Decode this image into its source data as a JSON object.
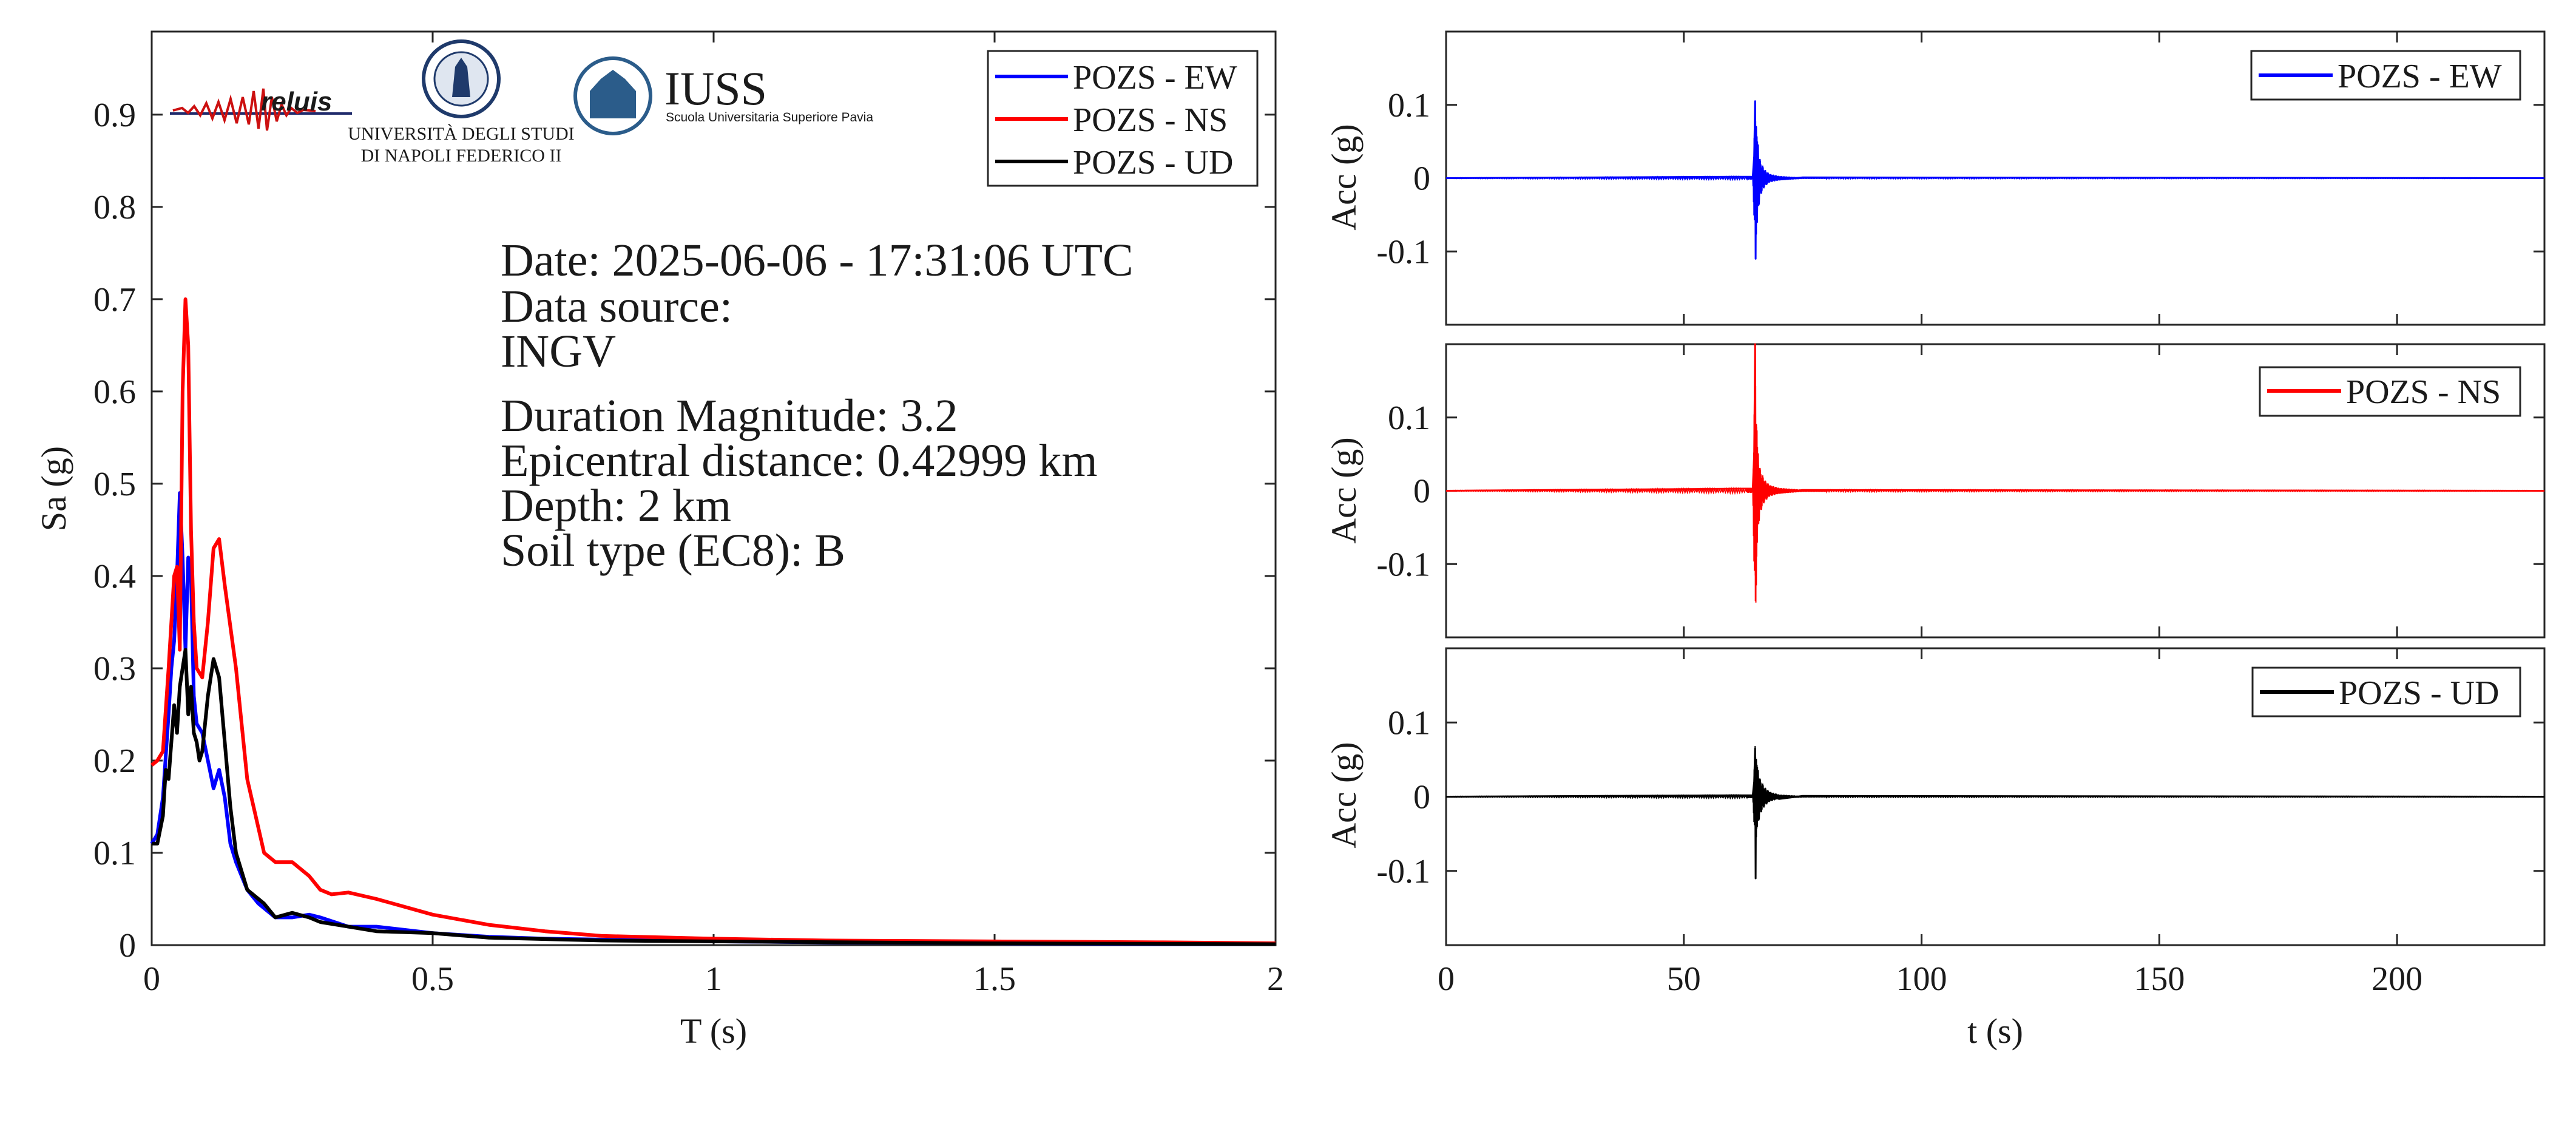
{
  "logos": {
    "reluis": "reluis",
    "unina_line1": "UNIVERSITÀ DEGLI STUDI",
    "unina_line2": "DI NAPOLI FEDERICO II",
    "iuss": "IUSS",
    "iuss_sub": "Scuola Universitaria Superiore Pavia"
  },
  "info": {
    "date": "Date: 2025-06-06 - 17:31:06 UTC",
    "source_label": "Data source:",
    "source": "INGV",
    "magnitude": "Duration Magnitude: 3.2",
    "distance": "Epicentral distance: 0.42999 km",
    "depth": "Depth: 2 km",
    "soil": "Soil type (EC8): B"
  },
  "colors": {
    "EW": "#0000ff",
    "NS": "#ff0000",
    "UD": "#000000"
  },
  "chart_data": [
    {
      "type": "line",
      "xlabel": "T (s)",
      "ylabel": "Sa (g)",
      "xlim": [
        0,
        2
      ],
      "ylim": [
        0,
        0.99
      ],
      "xticks": [
        0,
        0.5,
        1,
        1.5,
        2
      ],
      "xtick_labels": [
        "0",
        "0.5",
        "1",
        "1.5",
        "2"
      ],
      "yticks": [
        0,
        0.1,
        0.2,
        0.3,
        0.4,
        0.5,
        0.6,
        0.7,
        0.8,
        0.9
      ],
      "ytick_labels": [
        "0",
        "0.1",
        "0.2",
        "0.3",
        "0.4",
        "0.5",
        "0.6",
        "0.7",
        "0.8",
        "0.9"
      ],
      "legend_position": "top-right",
      "series": [
        {
          "name": "POZS - EW",
          "color": "#0000ff",
          "x": [
            0,
            0.01,
            0.02,
            0.03,
            0.035,
            0.04,
            0.045,
            0.05,
            0.055,
            0.06,
            0.065,
            0.07,
            0.075,
            0.08,
            0.09,
            0.1,
            0.11,
            0.12,
            0.13,
            0.14,
            0.15,
            0.17,
            0.19,
            0.2,
            0.22,
            0.25,
            0.28,
            0.3,
            0.35,
            0.4,
            0.5,
            0.6,
            0.7,
            0.8,
            1.0,
            1.2,
            1.5,
            1.8,
            2.0
          ],
          "y": [
            0.11,
            0.12,
            0.16,
            0.25,
            0.3,
            0.33,
            0.4,
            0.49,
            0.42,
            0.32,
            0.42,
            0.4,
            0.27,
            0.24,
            0.23,
            0.2,
            0.17,
            0.19,
            0.16,
            0.11,
            0.09,
            0.06,
            0.045,
            0.04,
            0.03,
            0.03,
            0.033,
            0.03,
            0.02,
            0.02,
            0.013,
            0.009,
            0.007,
            0.006,
            0.004,
            0.003,
            0.002,
            0.001,
            0.001
          ]
        },
        {
          "name": "POZS - NS",
          "color": "#ff0000",
          "x": [
            0,
            0.01,
            0.02,
            0.03,
            0.04,
            0.045,
            0.05,
            0.055,
            0.06,
            0.065,
            0.07,
            0.075,
            0.08,
            0.09,
            0.1,
            0.11,
            0.12,
            0.13,
            0.15,
            0.17,
            0.2,
            0.22,
            0.25,
            0.28,
            0.3,
            0.32,
            0.35,
            0.4,
            0.5,
            0.6,
            0.7,
            0.8,
            1.0,
            1.2,
            1.5,
            1.8,
            2.0
          ],
          "y": [
            0.195,
            0.2,
            0.21,
            0.3,
            0.4,
            0.41,
            0.32,
            0.6,
            0.7,
            0.65,
            0.45,
            0.35,
            0.3,
            0.29,
            0.35,
            0.43,
            0.44,
            0.39,
            0.3,
            0.18,
            0.1,
            0.09,
            0.09,
            0.075,
            0.06,
            0.055,
            0.057,
            0.05,
            0.033,
            0.022,
            0.015,
            0.01,
            0.007,
            0.005,
            0.004,
            0.003,
            0.002
          ]
        },
        {
          "name": "POZS - UD",
          "color": "#000000",
          "x": [
            0,
            0.01,
            0.02,
            0.025,
            0.03,
            0.04,
            0.045,
            0.05,
            0.055,
            0.06,
            0.065,
            0.07,
            0.075,
            0.08,
            0.085,
            0.09,
            0.1,
            0.11,
            0.12,
            0.13,
            0.14,
            0.15,
            0.17,
            0.19,
            0.2,
            0.22,
            0.25,
            0.28,
            0.3,
            0.35,
            0.4,
            0.5,
            0.6,
            0.8,
            1.0,
            1.5,
            2.0
          ],
          "y": [
            0.11,
            0.11,
            0.14,
            0.19,
            0.18,
            0.26,
            0.23,
            0.28,
            0.3,
            0.32,
            0.25,
            0.28,
            0.23,
            0.22,
            0.2,
            0.21,
            0.27,
            0.31,
            0.29,
            0.22,
            0.15,
            0.1,
            0.06,
            0.05,
            0.045,
            0.03,
            0.035,
            0.03,
            0.025,
            0.02,
            0.015,
            0.013,
            0.008,
            0.005,
            0.004,
            0.002,
            0.001
          ]
        }
      ]
    },
    {
      "type": "line",
      "xlabel": "",
      "ylabel": "Acc (g)",
      "xlim": [
        0,
        231
      ],
      "ylim": [
        -0.2,
        0.2
      ],
      "yticks": [
        -0.1,
        0,
        0.1
      ],
      "ytick_labels": [
        "-0.1",
        "0",
        "0.1"
      ],
      "xticks": [
        0,
        50,
        100,
        150,
        200
      ],
      "show_xtick_labels": false,
      "legend_position": "top-right",
      "series": [
        {
          "name": "POZS - EW",
          "color": "#0000ff",
          "x": [
            0,
            64.5,
            64.8,
            65.0,
            65.1,
            65.2,
            65.4,
            65.6,
            65.8,
            66.0,
            66.3,
            66.6,
            67.0,
            68.0,
            70.0,
            75.0,
            231
          ],
          "y": [
            0,
            0.002,
            0.03,
            0.105,
            -0.11,
            0.07,
            -0.06,
            0.045,
            -0.035,
            0.025,
            -0.02,
            0.012,
            -0.008,
            0.004,
            -0.002,
            0.001,
            0
          ],
          "envelope": {
            "t": [
              0,
              64.5,
              65.0,
              65.5,
              66.0,
              67.0,
              68.0,
              70.0,
              75.0,
              231
            ],
            "a": [
              0.0005,
              0.002,
              0.105,
              0.05,
              0.025,
              0.012,
              0.006,
              0.003,
              0.001,
              0.0005
            ]
          }
        }
      ]
    },
    {
      "type": "line",
      "xlabel": "",
      "ylabel": "Acc (g)",
      "xlim": [
        0,
        231
      ],
      "ylim": [
        -0.2,
        0.2
      ],
      "yticks": [
        -0.1,
        0,
        0.1
      ],
      "ytick_labels": [
        "-0.1",
        "0",
        "0.1"
      ],
      "xticks": [
        0,
        50,
        100,
        150,
        200
      ],
      "show_xtick_labels": false,
      "legend_position": "top-right",
      "series": [
        {
          "name": "POZS - NS",
          "color": "#ff0000",
          "x": [
            0,
            64.5,
            64.8,
            65.0,
            65.1,
            65.2,
            65.4,
            65.6,
            65.8,
            66.0,
            66.3,
            66.6,
            67.0,
            68.0,
            70.0,
            75.0,
            231
          ],
          "y": [
            0,
            0.003,
            0.05,
            0.2,
            -0.115,
            0.09,
            -0.07,
            0.05,
            -0.04,
            0.03,
            -0.025,
            0.015,
            -0.01,
            0.006,
            -0.003,
            0.001,
            0
          ],
          "envelope": {
            "t": [
              0,
              64.5,
              65.0,
              65.5,
              66.0,
              67.0,
              68.0,
              70.0,
              75.0,
              231
            ],
            "a": [
              0.0005,
              0.003,
              0.2,
              0.06,
              0.03,
              0.015,
              0.008,
              0.004,
              0.0015,
              0.0005
            ]
          }
        }
      ]
    },
    {
      "type": "line",
      "xlabel": "t (s)",
      "ylabel": "Acc (g)",
      "xlim": [
        0,
        231
      ],
      "ylim": [
        -0.2,
        0.2
      ],
      "xticks": [
        0,
        50,
        100,
        150,
        200
      ],
      "xtick_labels": [
        "0",
        "50",
        "100",
        "150",
        "200"
      ],
      "yticks": [
        -0.1,
        0,
        0.1
      ],
      "ytick_labels": [
        "-0.1",
        "0",
        "0.1"
      ],
      "legend_position": "top-right",
      "series": [
        {
          "name": "POZS - UD",
          "color": "#000000",
          "x": [
            0,
            64.5,
            64.8,
            65.0,
            65.1,
            65.2,
            65.4,
            65.6,
            65.8,
            66.0,
            66.3,
            66.6,
            67.0,
            68.0,
            70.0,
            75.0,
            231
          ],
          "y": [
            0,
            0.002,
            0.02,
            0.065,
            -0.11,
            0.05,
            -0.04,
            0.035,
            -0.03,
            0.02,
            -0.018,
            0.012,
            -0.008,
            0.005,
            -0.003,
            0.001,
            0
          ],
          "envelope": {
            "t": [
              0,
              64.5,
              65.0,
              65.5,
              66.0,
              67.0,
              68.0,
              70.0,
              75.0,
              231
            ],
            "a": [
              0.0005,
              0.002,
              0.07,
              0.04,
              0.025,
              0.013,
              0.007,
              0.003,
              0.001,
              0.0005
            ]
          }
        }
      ]
    }
  ]
}
